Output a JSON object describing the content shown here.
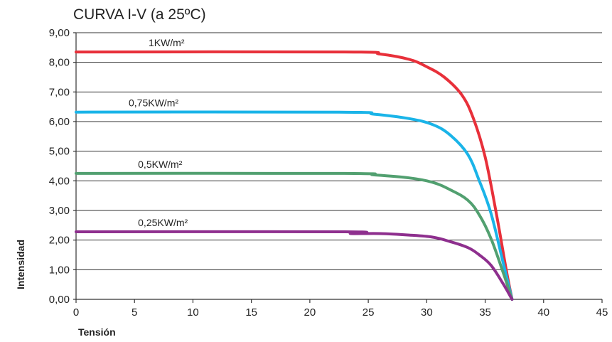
{
  "chart_data": {
    "type": "line",
    "title": "CURVA I-V (a 25ºC)",
    "xlabel": "Tensión",
    "ylabel": "Intensidad",
    "xlim": [
      0,
      45
    ],
    "ylim": [
      0,
      9
    ],
    "xticks": [
      0,
      5,
      10,
      15,
      20,
      25,
      30,
      35,
      40,
      45
    ],
    "xtick_labels": [
      "0",
      "5",
      "10",
      "15",
      "20",
      "25",
      "30",
      "35",
      "40",
      "45"
    ],
    "yticks": [
      0,
      1,
      2,
      3,
      4,
      5,
      6,
      7,
      8,
      9
    ],
    "ytick_labels": [
      "0,00",
      "1,00",
      "2,00",
      "3,00",
      "4,00",
      "5,00",
      "6,00",
      "7,00",
      "8,00",
      "9,00"
    ],
    "grid": "horizontal",
    "series": [
      {
        "name": "1KW/m²",
        "color": "#e8303a",
        "points": [
          [
            0,
            8.35
          ],
          [
            23,
            8.35
          ],
          [
            26,
            8.28
          ],
          [
            28.5,
            8.1
          ],
          [
            30,
            7.85
          ],
          [
            31.5,
            7.5
          ],
          [
            33,
            6.9
          ],
          [
            34,
            6.1
          ],
          [
            35,
            4.8
          ],
          [
            36,
            2.8
          ],
          [
            36.8,
            1.0
          ],
          [
            37.3,
            0.0
          ]
        ]
      },
      {
        "name": "0,75KW/m²",
        "color": "#1ab4e8",
        "points": [
          [
            0,
            6.32
          ],
          [
            22.5,
            6.32
          ],
          [
            25.5,
            6.25
          ],
          [
            28.5,
            6.1
          ],
          [
            30.5,
            5.9
          ],
          [
            32,
            5.55
          ],
          [
            33.5,
            4.9
          ],
          [
            34.5,
            4.0
          ],
          [
            35.5,
            2.9
          ],
          [
            36.5,
            1.3
          ],
          [
            37.3,
            0.0
          ]
        ]
      },
      {
        "name": "0,5KW/m²",
        "color": "#52a070",
        "points": [
          [
            0,
            4.25
          ],
          [
            23,
            4.25
          ],
          [
            25.5,
            4.2
          ],
          [
            28.5,
            4.1
          ],
          [
            30.5,
            3.95
          ],
          [
            32,
            3.7
          ],
          [
            33.5,
            3.35
          ],
          [
            34.5,
            2.85
          ],
          [
            35.5,
            2.05
          ],
          [
            36.5,
            0.95
          ],
          [
            37.3,
            0.0
          ]
        ]
      },
      {
        "name": "0,25KW/m²",
        "color": "#8e2f8e",
        "points": [
          [
            0,
            2.28
          ],
          [
            23,
            2.28
          ],
          [
            23.5,
            2.22
          ],
          [
            26,
            2.22
          ],
          [
            28.5,
            2.17
          ],
          [
            30.5,
            2.1
          ],
          [
            32,
            1.95
          ],
          [
            33.5,
            1.75
          ],
          [
            34.5,
            1.5
          ],
          [
            35.5,
            1.15
          ],
          [
            36.5,
            0.55
          ],
          [
            37.3,
            0.0
          ]
        ]
      }
    ]
  }
}
